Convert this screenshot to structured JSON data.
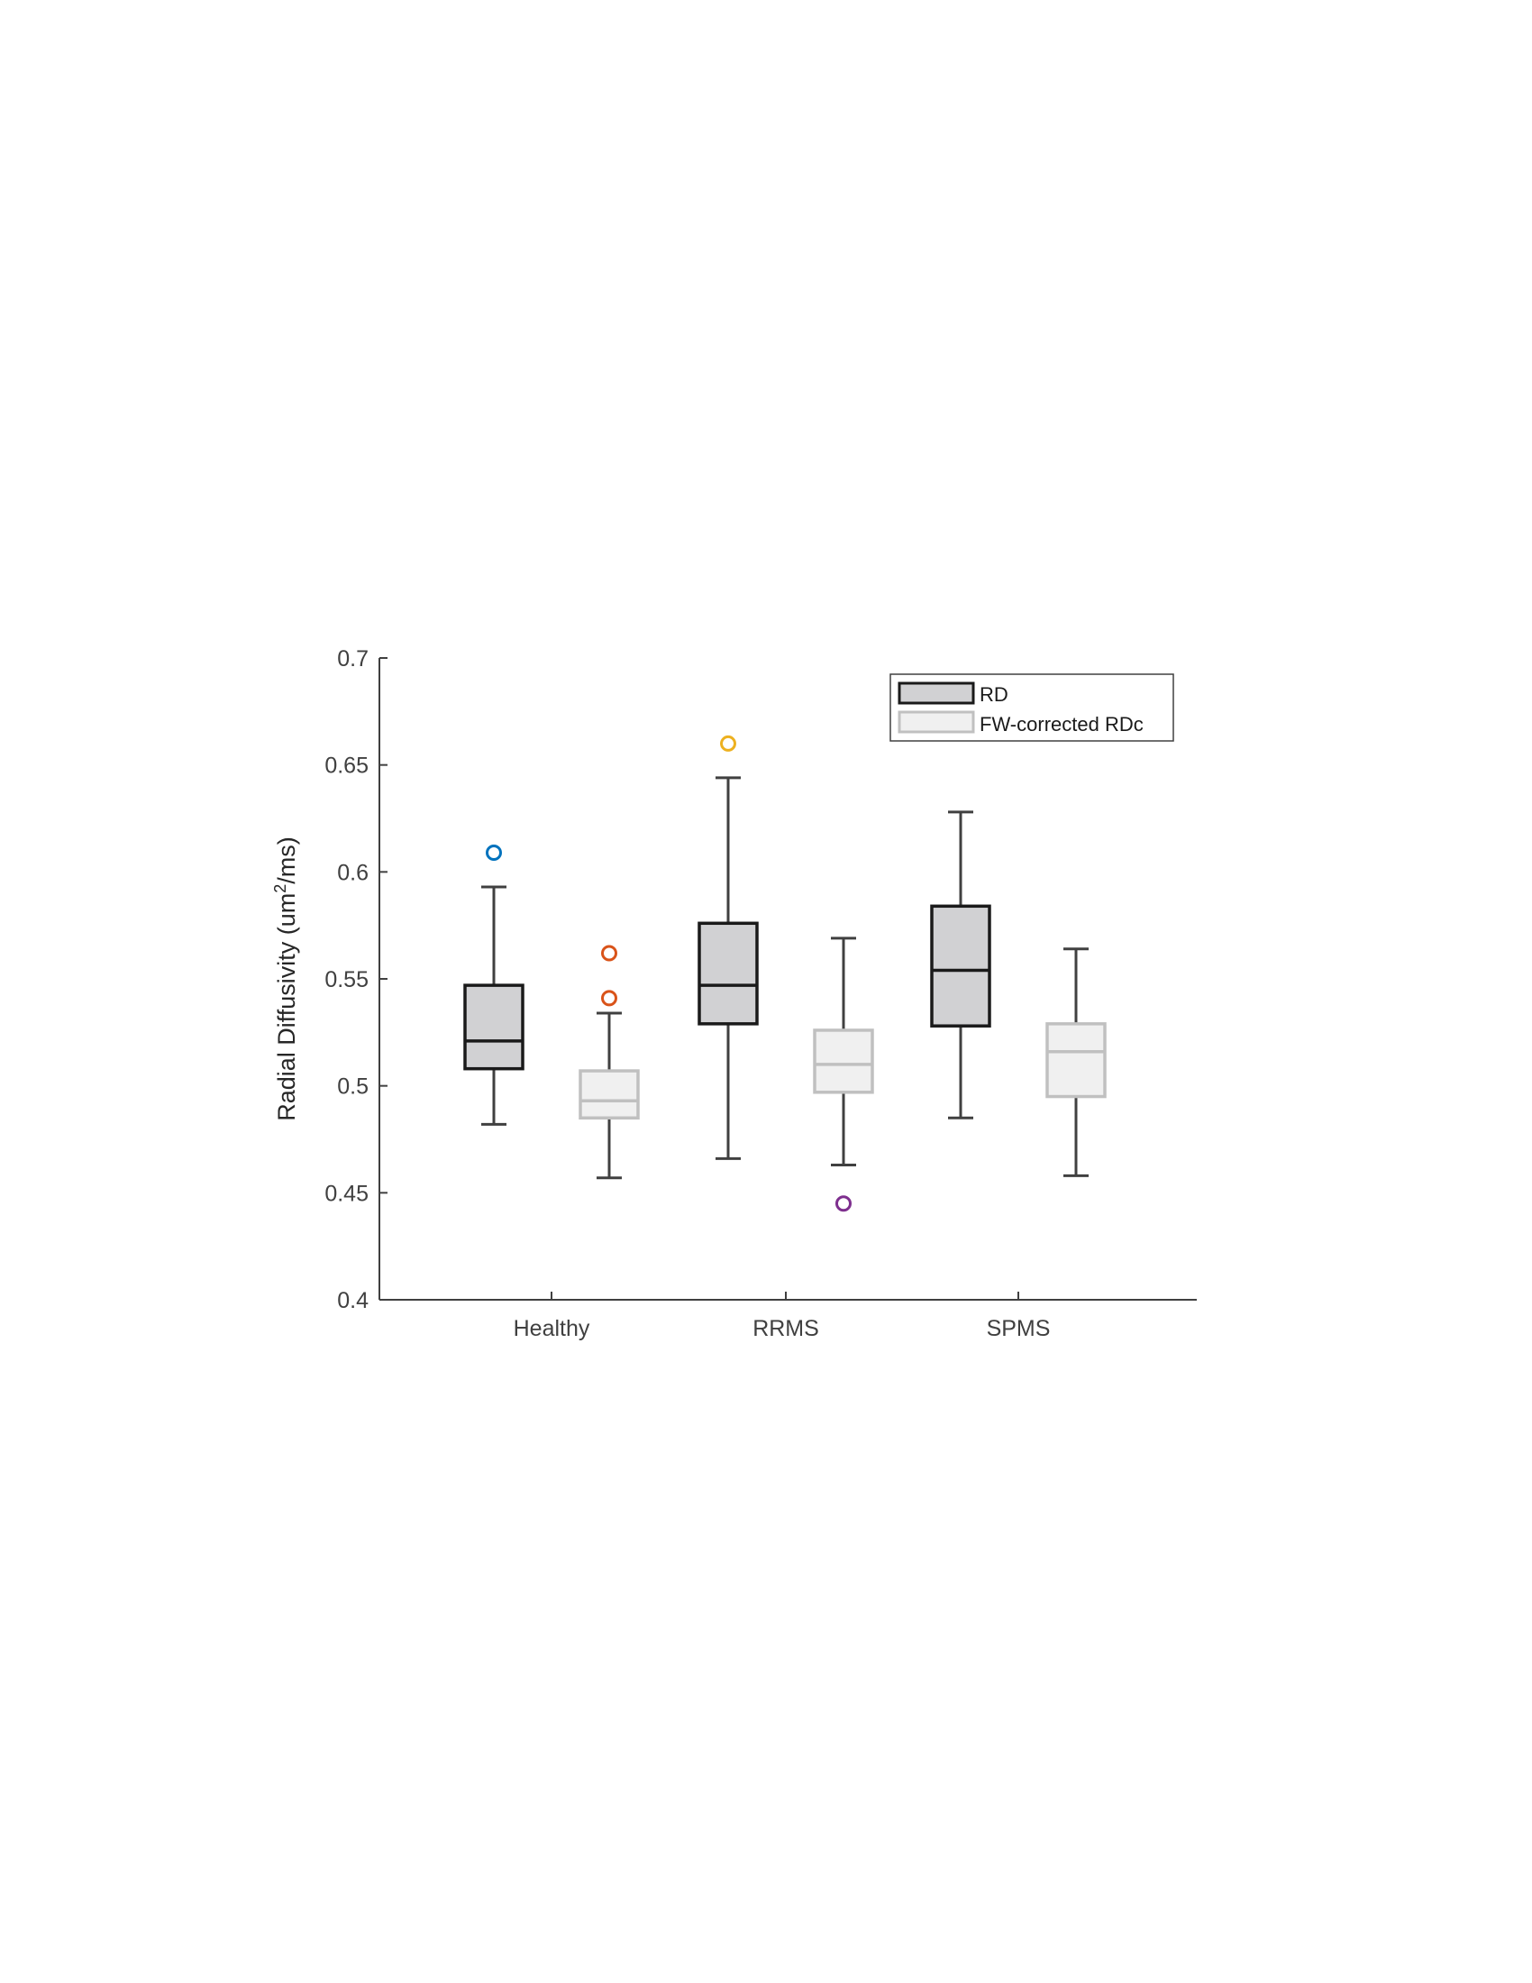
{
  "chart_data": {
    "type": "box",
    "ylabel": {
      "prefix": "Radial Diffusivity (um",
      "sup": "2",
      "suffix": "/ms)"
    },
    "ylim": [
      0.4,
      0.7
    ],
    "yticks": [
      {
        "value": 0.4,
        "label": "0.4"
      },
      {
        "value": 0.45,
        "label": "0.45"
      },
      {
        "value": 0.5,
        "label": "0.5"
      },
      {
        "value": 0.55,
        "label": "0.55"
      },
      {
        "value": 0.6,
        "label": "0.6"
      },
      {
        "value": 0.65,
        "label": "0.65"
      },
      {
        "value": 0.7,
        "label": "0.7"
      }
    ],
    "categories": [
      "Healthy",
      "RRMS",
      "SPMS"
    ],
    "legend_position": "top-right",
    "grid": false,
    "series": [
      {
        "name": "RD",
        "fill": "#d1d1d3",
        "stroke": "#1a1a1a",
        "whisker_color": "#404040",
        "boxes": [
          {
            "whisker_low": 0.482,
            "q1": 0.508,
            "median": 0.521,
            "q3": 0.547,
            "whisker_high": 0.593
          },
          {
            "whisker_low": 0.466,
            "q1": 0.529,
            "median": 0.547,
            "q3": 0.576,
            "whisker_high": 0.644
          },
          {
            "whisker_low": 0.485,
            "q1": 0.528,
            "median": 0.554,
            "q3": 0.584,
            "whisker_high": 0.628
          }
        ]
      },
      {
        "name": "FW-corrected RDc",
        "fill": "#f0f0f0",
        "stroke": "#c0c0c0",
        "whisker_color": "#404040",
        "boxes": [
          {
            "whisker_low": 0.457,
            "q1": 0.485,
            "median": 0.493,
            "q3": 0.507,
            "whisker_high": 0.534
          },
          {
            "whisker_low": 0.463,
            "q1": 0.497,
            "median": 0.51,
            "q3": 0.526,
            "whisker_high": 0.569
          },
          {
            "whisker_low": 0.458,
            "q1": 0.495,
            "median": 0.516,
            "q3": 0.529,
            "whisker_high": 0.564
          }
        ]
      }
    ],
    "outliers": [
      {
        "category": "Healthy",
        "series": "RD",
        "value": 0.609,
        "color": "#0072bd"
      },
      {
        "category": "Healthy",
        "series": "FW-corrected RDc",
        "value": 0.562,
        "color": "#d95319"
      },
      {
        "category": "Healthy",
        "series": "FW-corrected RDc",
        "value": 0.541,
        "color": "#d95319"
      },
      {
        "category": "RRMS",
        "series": "RD",
        "value": 0.66,
        "color": "#edb120"
      },
      {
        "category": "RRMS",
        "series": "FW-corrected RDc",
        "value": 0.445,
        "color": "#7e2f8e"
      }
    ],
    "colors": {
      "axis": "#404040",
      "ticktext": "#404040",
      "ylabel": "#262626"
    }
  }
}
